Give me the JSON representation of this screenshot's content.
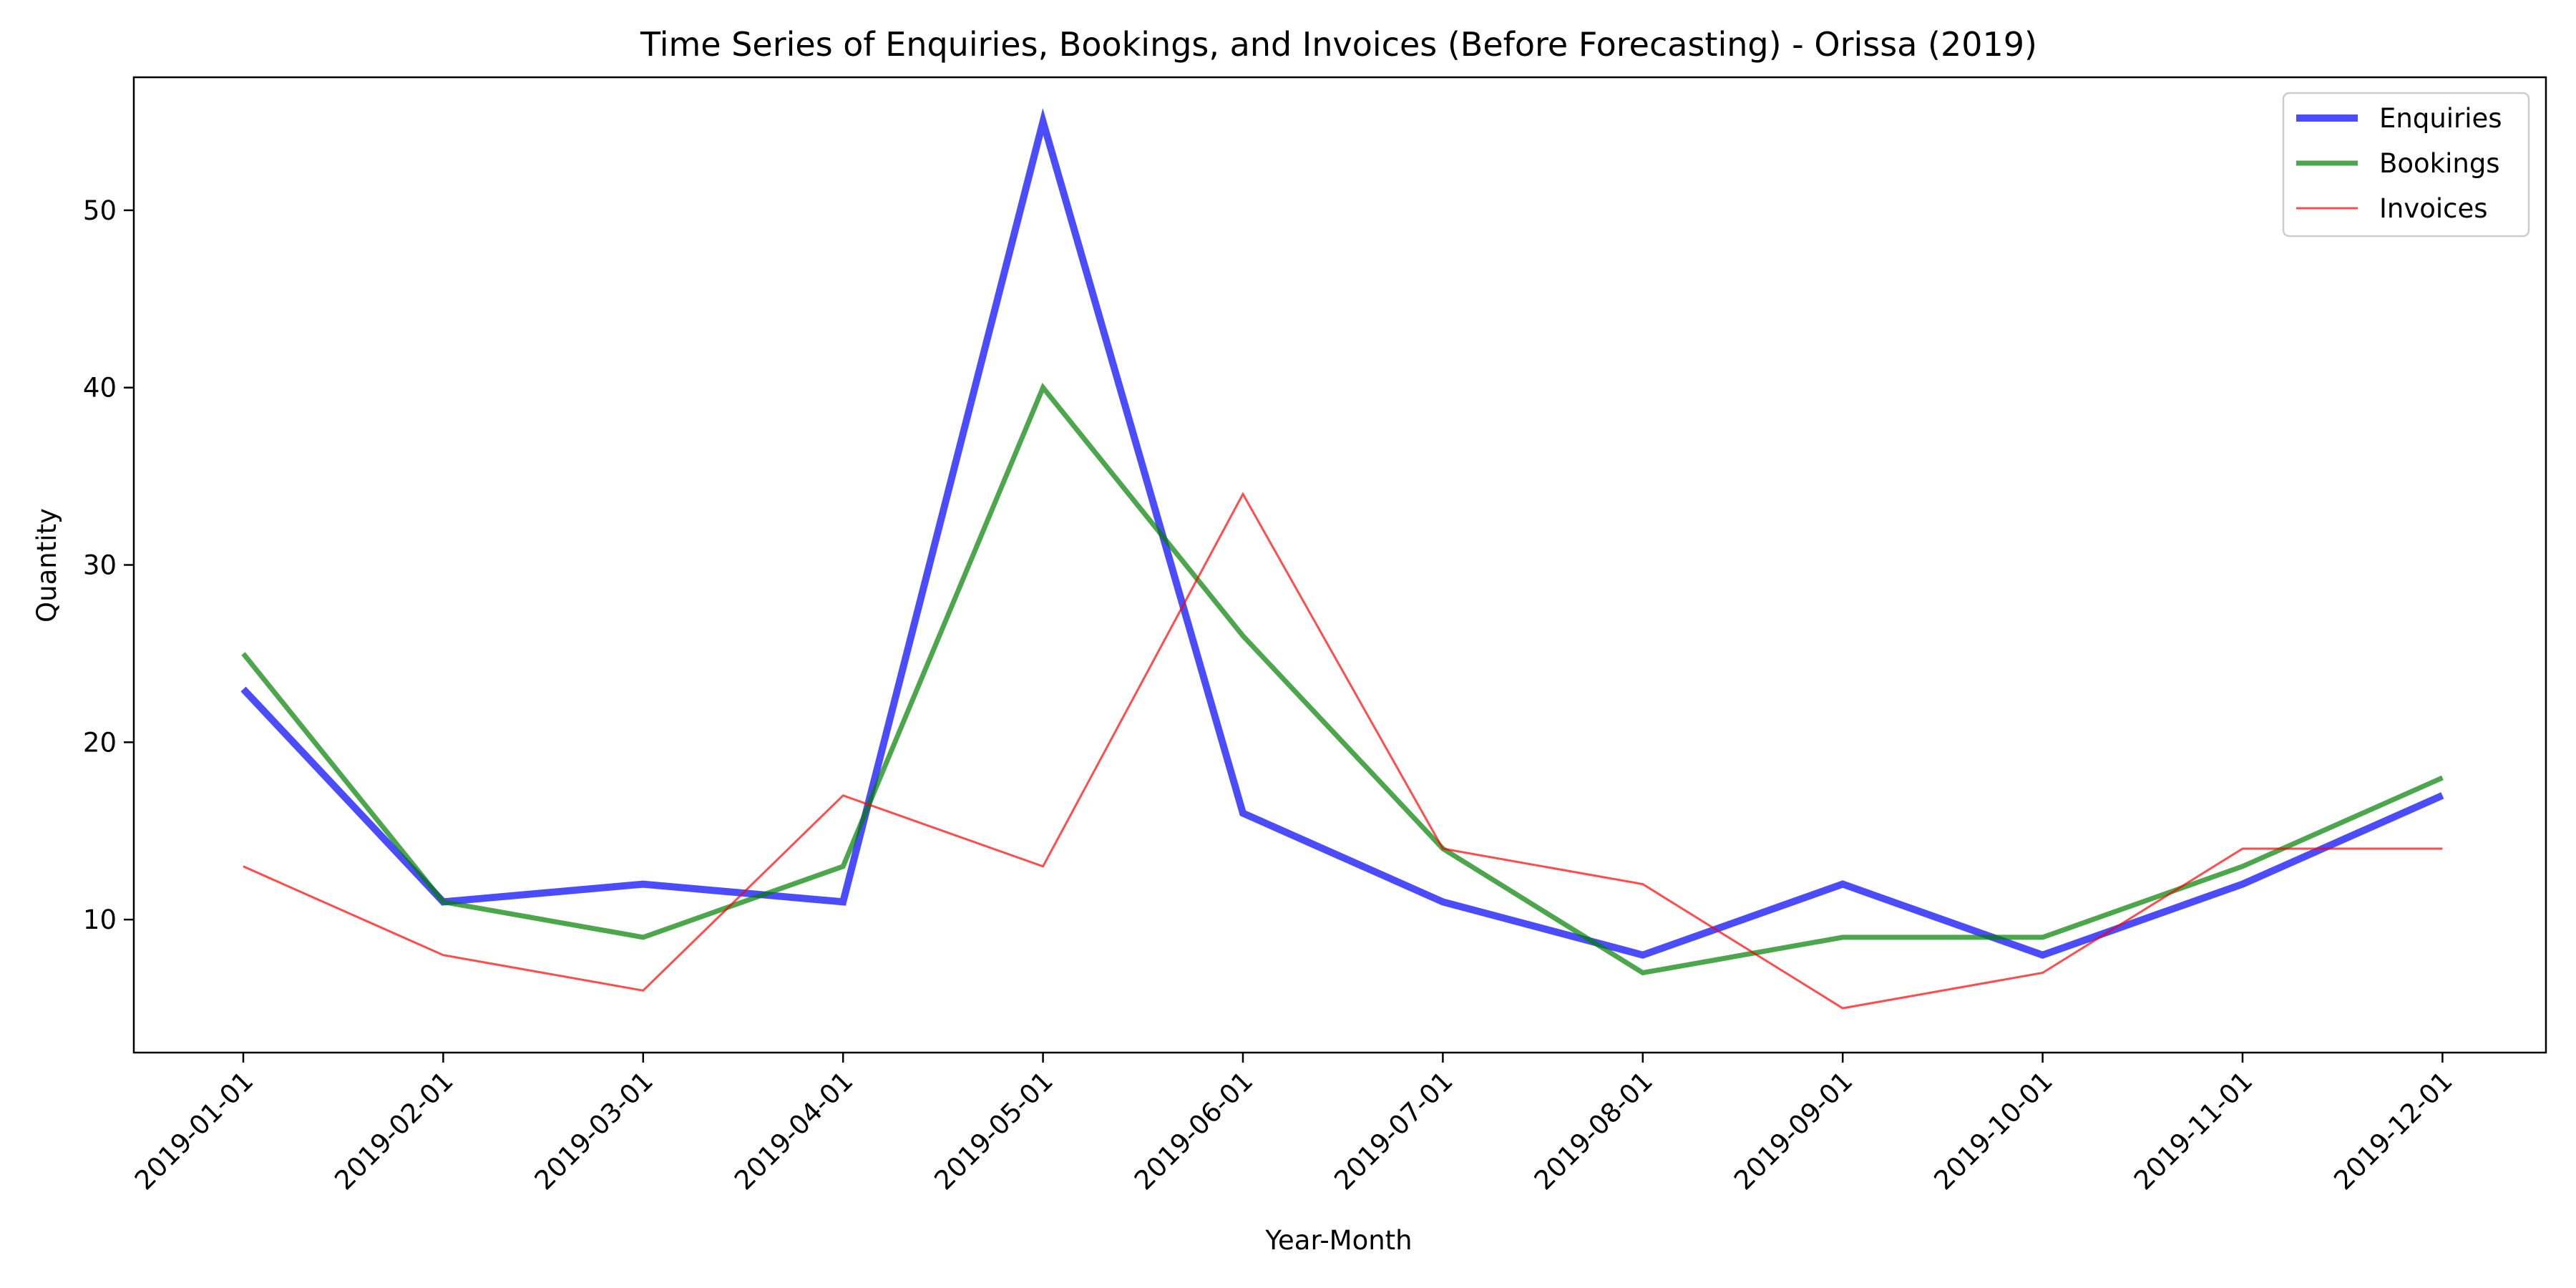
{
  "chart_data": {
    "type": "line",
    "title": "Time Series of Enquiries, Bookings, and Invoices (Before Forecasting) - Orissa (2019)",
    "xlabel": "Year-Month",
    "ylabel": "Quantity",
    "x": [
      "2019-01-01",
      "2019-02-01",
      "2019-03-01",
      "2019-04-01",
      "2019-05-01",
      "2019-06-01",
      "2019-07-01",
      "2019-08-01",
      "2019-09-01",
      "2019-10-01",
      "2019-11-01",
      "2019-12-01"
    ],
    "yticks": [
      10,
      20,
      30,
      40,
      50
    ],
    "ylim": [
      2.5,
      57.5
    ],
    "grid": false,
    "legend_position": "top-right",
    "series": [
      {
        "name": "Enquiries",
        "color": "#0000ff",
        "values": [
          23,
          11,
          12,
          11,
          55,
          16,
          11,
          8,
          12,
          8,
          12,
          17
        ]
      },
      {
        "name": "Bookings",
        "color": "#008000",
        "values": [
          25,
          11,
          9,
          13,
          40,
          26,
          14,
          7,
          9,
          9,
          13,
          18
        ]
      },
      {
        "name": "Invoices",
        "color": "#ff0000",
        "values": [
          13,
          8,
          6,
          17,
          13,
          34,
          14,
          12,
          5,
          7,
          14,
          14
        ]
      }
    ]
  }
}
